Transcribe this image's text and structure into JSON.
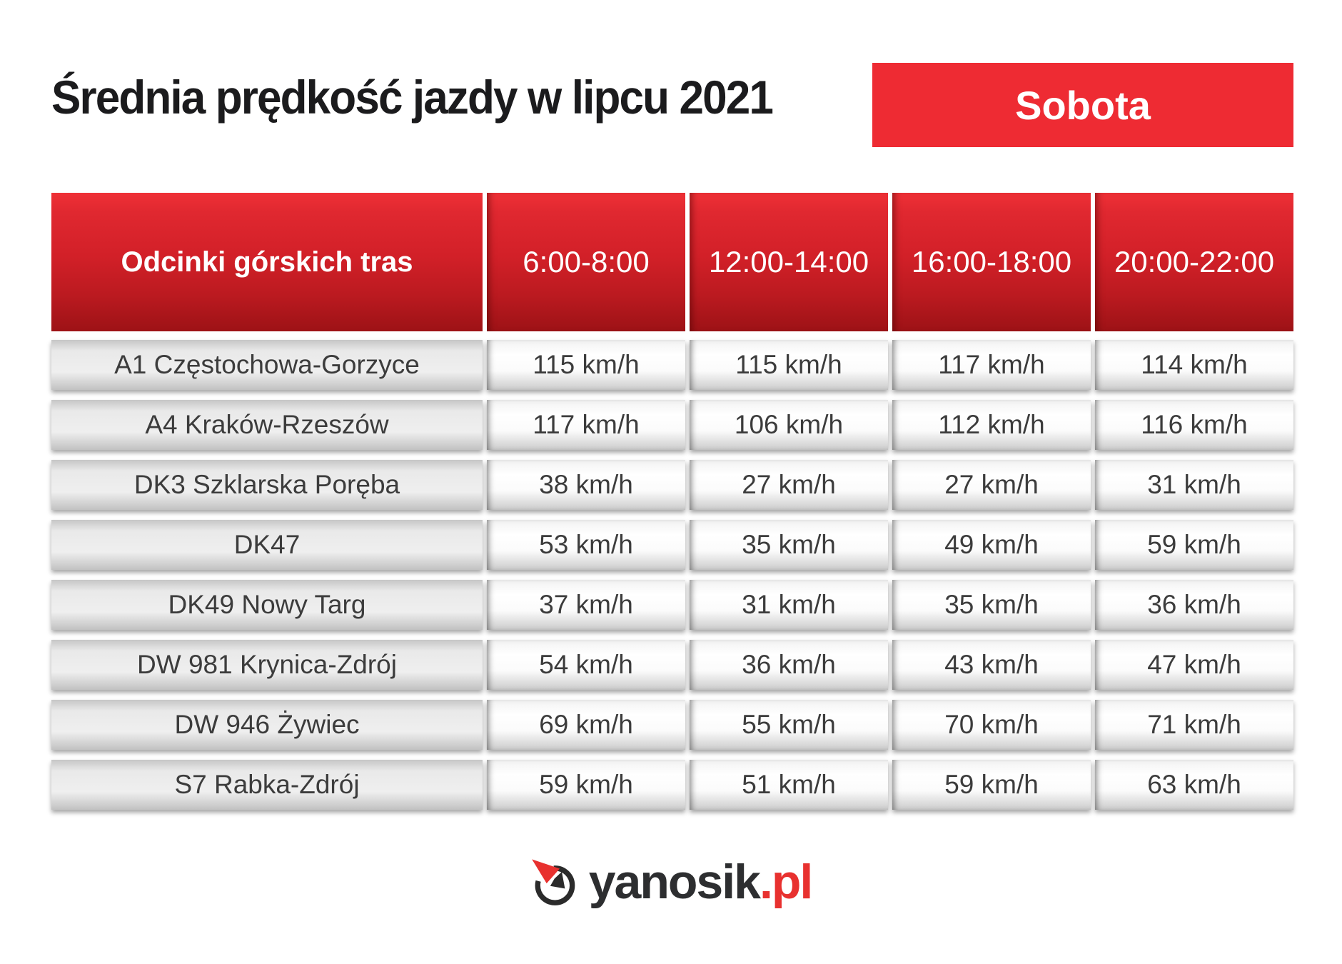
{
  "header": {
    "title": "Średnia prędkość jazdy w lipcu 2021",
    "badge_label": "Sobota"
  },
  "chart_data": {
    "type": "table",
    "title": "Średnia prędkość jazdy w lipcu 2021",
    "day_filter": "Sobota",
    "unit": "km/h",
    "row_header": "Odcinki górskich tras",
    "columns": [
      "6:00-8:00",
      "12:00-14:00",
      "16:00-18:00",
      "20:00-22:00"
    ],
    "rows": [
      {
        "route": "A1 Częstochowa-Gorzyce",
        "values": [
          115,
          115,
          117,
          114
        ]
      },
      {
        "route": "A4 Kraków-Rzeszów",
        "values": [
          117,
          106,
          112,
          116
        ]
      },
      {
        "route": "DK3 Szklarska Poręba",
        "values": [
          38,
          27,
          27,
          31
        ]
      },
      {
        "route": "DK47",
        "values": [
          53,
          35,
          49,
          59
        ]
      },
      {
        "route": "DK49 Nowy Targ",
        "values": [
          37,
          31,
          35,
          36
        ]
      },
      {
        "route": "DW 981 Krynica-Zdrój",
        "values": [
          54,
          36,
          43,
          47
        ]
      },
      {
        "route": "DW 946 Żywiec",
        "values": [
          69,
          55,
          70,
          71
        ]
      },
      {
        "route": "S7 Rabka-Zdrój",
        "values": [
          59,
          51,
          59,
          63
        ]
      }
    ]
  },
  "footer": {
    "brand": "yanosik",
    "tld": ".pl"
  },
  "colors": {
    "accent_red": "#ee2b33",
    "header_red_dark": "#9d1216",
    "logo_red": "#e8312f",
    "logo_dark": "#2d2e30",
    "row_text": "#3c3c3c"
  }
}
